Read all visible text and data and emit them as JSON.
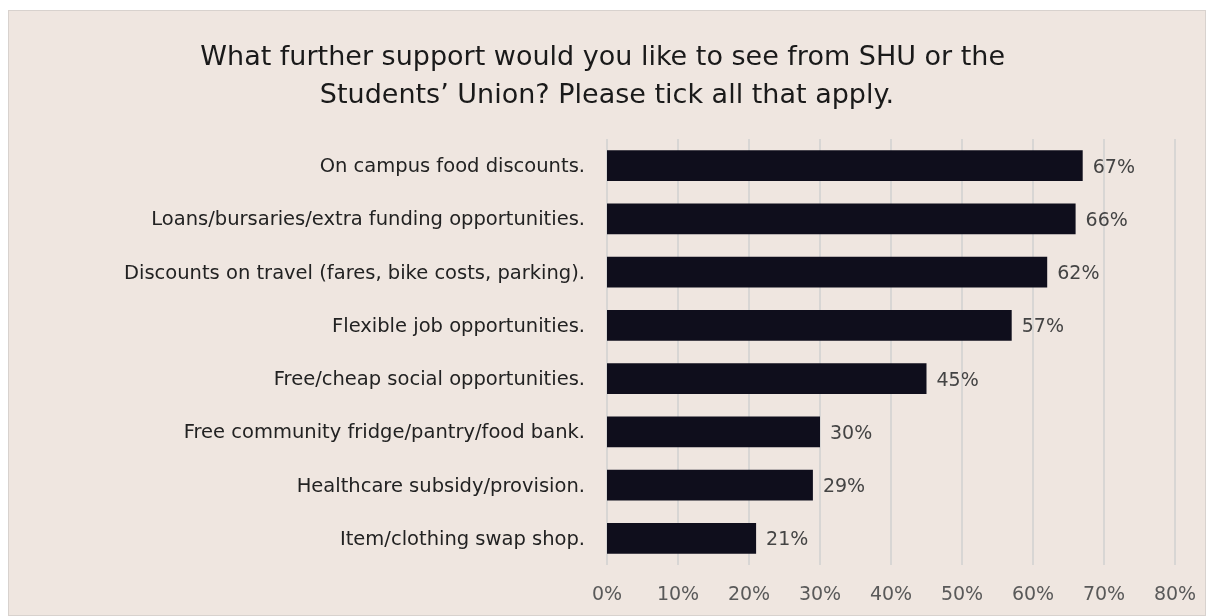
{
  "chart_data": {
    "type": "bar",
    "orientation": "horizontal",
    "title": "What further support would you like to see from SHU or the Students’ Union? Please tick all that apply.",
    "categories": [
      "On campus food discounts.",
      "Loans/bursaries/extra funding opportunities.",
      "Discounts on travel (fares, bike costs, parking).",
      "Flexible job opportunities.",
      "Free/cheap social opportunities.",
      "Free community fridge/pantry/food bank.",
      "Healthcare subsidy/provision.",
      "Item/clothing swap shop."
    ],
    "values": [
      67,
      66,
      62,
      57,
      45,
      30,
      29,
      21
    ],
    "value_labels": [
      "67%",
      "66%",
      "62%",
      "57%",
      "45%",
      "30%",
      "29%",
      "21%"
    ],
    "color": "#0f0e1c",
    "xlim": [
      0,
      80
    ],
    "xticks": [
      {
        "value": 0,
        "label": "0%"
      },
      {
        "value": 10,
        "label": "10%"
      },
      {
        "value": 20,
        "label": "20%"
      },
      {
        "value": 30,
        "label": "30%"
      },
      {
        "value": 40,
        "label": "40%"
      },
      {
        "value": 50,
        "label": "50%"
      },
      {
        "value": 60,
        "label": "60%"
      },
      {
        "value": 70,
        "label": "70%"
      },
      {
        "value": 80,
        "label": "80%"
      }
    ],
    "grid": "x"
  }
}
